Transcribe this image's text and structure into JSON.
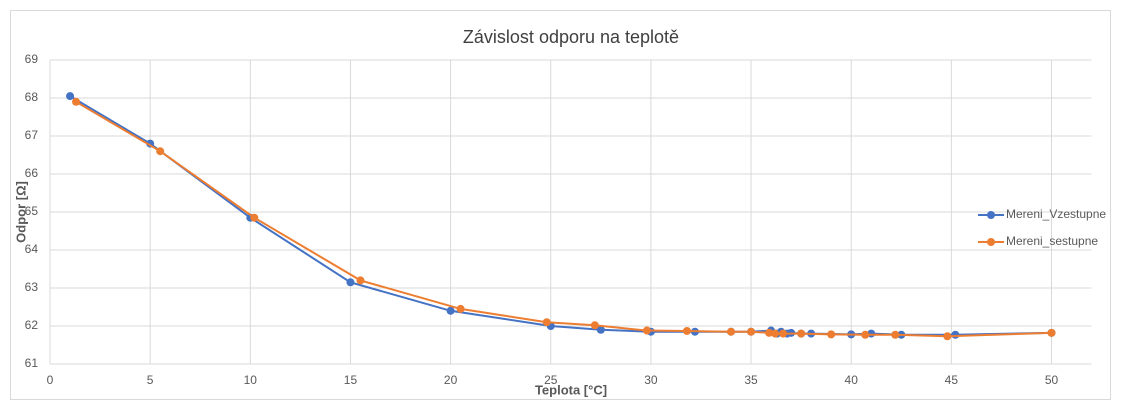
{
  "chart_data": {
    "type": "scatter-line",
    "title": "Závislost odporu na teplotě",
    "x_label": "Teplota [°C]",
    "y_label": "Odpor [Ω]",
    "xlim": [
      0,
      52
    ],
    "xticks": [
      0,
      5,
      10,
      15,
      20,
      25,
      30,
      35,
      40,
      45,
      50
    ],
    "ylim": [
      61,
      69
    ],
    "yticks": [
      61,
      62,
      63,
      64,
      65,
      66,
      67,
      68,
      69
    ],
    "grid": true,
    "legend": "right",
    "series": [
      {
        "name": "Mereni_Vzestupne",
        "color": "#4472c4",
        "x": [
          1.0,
          5.0,
          10.0,
          15.0,
          20.0,
          25.0,
          27.5,
          30.0,
          32.2,
          34.0,
          35.0,
          36.0,
          36.3,
          36.5,
          36.8,
          37.0,
          37.5,
          38.0,
          40.0,
          41.0,
          42.5,
          45.2,
          50.0
        ],
        "values": [
          68.05,
          66.8,
          64.85,
          63.15,
          62.4,
          62.0,
          61.9,
          61.85,
          61.85,
          61.85,
          61.85,
          61.88,
          61.8,
          61.85,
          61.8,
          61.82,
          61.8,
          61.8,
          61.78,
          61.8,
          61.77,
          61.77,
          61.82
        ]
      },
      {
        "name": "Mereni_sestupne",
        "color": "#ed7d31",
        "x": [
          1.3,
          5.5,
          10.2,
          15.5,
          20.5,
          24.8,
          27.2,
          29.8,
          31.8,
          34.0,
          35.0,
          35.9,
          36.2,
          36.6,
          37.5,
          39.0,
          40.7,
          42.2,
          44.8,
          50.0
        ],
        "values": [
          67.9,
          66.6,
          64.85,
          63.2,
          62.45,
          62.1,
          62.02,
          61.88,
          61.87,
          61.85,
          61.85,
          61.82,
          61.8,
          61.8,
          61.8,
          61.78,
          61.77,
          61.77,
          61.73,
          61.82
        ]
      }
    ]
  }
}
